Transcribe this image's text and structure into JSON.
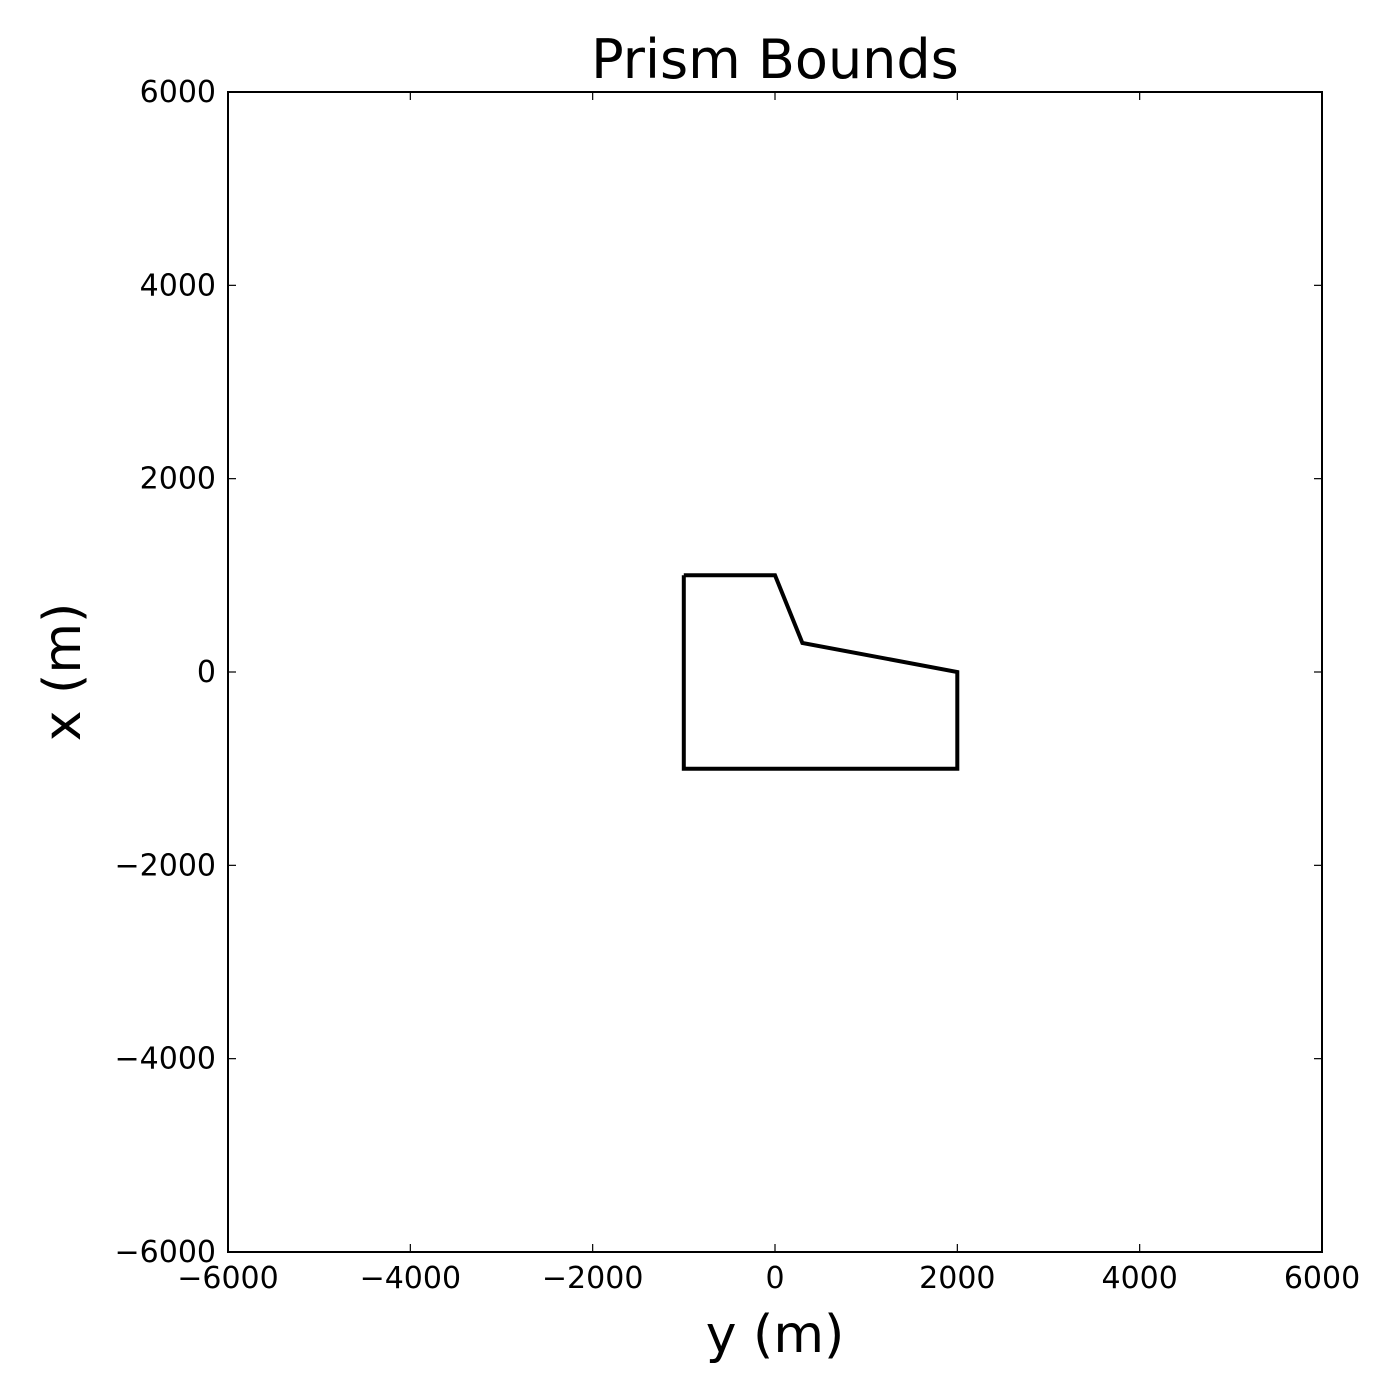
{
  "chart_data": {
    "type": "line",
    "title": "Prism Bounds",
    "xlabel": "y (m)",
    "ylabel": "x (m)",
    "xlim": [
      -6000,
      6000
    ],
    "ylim": [
      -6000,
      6000
    ],
    "xticks": [
      -6000,
      -4000,
      -2000,
      0,
      2000,
      4000,
      6000
    ],
    "yticks": [
      -6000,
      -4000,
      -2000,
      0,
      2000,
      4000,
      6000
    ],
    "xtick_labels": [
      "−6000",
      "−4000",
      "−2000",
      "0",
      "2000",
      "4000",
      "6000"
    ],
    "ytick_labels": [
      "−6000",
      "−4000",
      "−2000",
      "0",
      "2000",
      "4000",
      "6000"
    ],
    "grid": false,
    "series": [
      {
        "color": "#000000",
        "closed": true,
        "x": [
          -1000,
          0,
          300,
          2000,
          2000,
          -1000,
          -1000
        ],
        "y": [
          1000,
          1000,
          300,
          0,
          -1000,
          -1000,
          1000
        ]
      }
    ]
  }
}
